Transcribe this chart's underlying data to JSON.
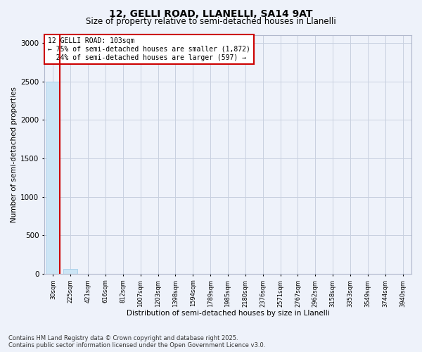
{
  "title1": "12, GELLI ROAD, LLANELLI, SA14 9AT",
  "title2": "Size of property relative to semi-detached houses in Llanelli",
  "xlabel": "Distribution of semi-detached houses by size in Llanelli",
  "ylabel": "Number of semi-detached properties",
  "annotation_title": "12 GELLI ROAD: 103sqm",
  "annotation_line2": "← 75% of semi-detached houses are smaller (1,872)",
  "annotation_line3": "24% of semi-detached houses are larger (597) →",
  "footer1": "Contains HM Land Registry data © Crown copyright and database right 2025.",
  "footer2": "Contains public sector information licensed under the Open Government Licence v3.0.",
  "categories": [
    "30sqm",
    "225sqm",
    "421sqm",
    "616sqm",
    "812sqm",
    "1007sqm",
    "1203sqm",
    "1398sqm",
    "1594sqm",
    "1789sqm",
    "1985sqm",
    "2180sqm",
    "2376sqm",
    "2571sqm",
    "2767sqm",
    "2962sqm",
    "3158sqm",
    "3353sqm",
    "3549sqm",
    "3744sqm",
    "3940sqm"
  ],
  "values": [
    2500,
    60,
    2,
    1,
    0,
    0,
    0,
    0,
    0,
    0,
    0,
    0,
    0,
    0,
    0,
    0,
    0,
    0,
    0,
    0,
    0
  ],
  "bar_color": "#cce5f5",
  "bar_edge_color": "#99c9e8",
  "highlight_color": "#cc0000",
  "annotation_box_color": "#ffffff",
  "annotation_box_edge": "#cc0000",
  "background_color": "#eef2fa",
  "grid_color": "#c8d0e0",
  "ylim": [
    0,
    3100
  ],
  "yticks": [
    0,
    500,
    1000,
    1500,
    2000,
    2500,
    3000
  ],
  "red_line_x": -0.1
}
